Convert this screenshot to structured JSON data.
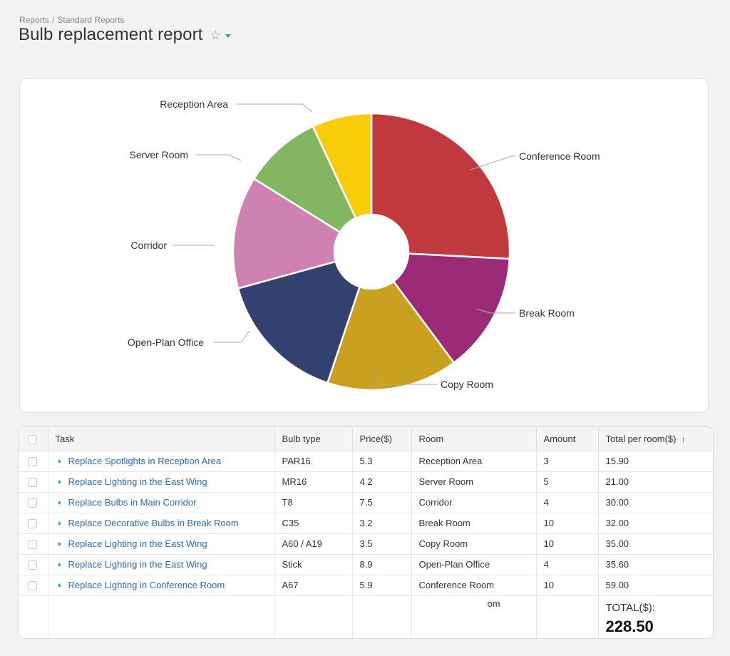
{
  "breadcrumb": {
    "root": "Reports",
    "separator": "/",
    "current": "Standard Reports"
  },
  "page": {
    "title": "Bulb replacement report"
  },
  "chart_data": {
    "type": "pie",
    "hole": true,
    "categories": [
      "Conference Room",
      "Break Room",
      "Copy Room",
      "Open-Plan Office",
      "Corridor",
      "Server Room",
      "Reception Area"
    ],
    "values": [
      59.0,
      32.0,
      35.0,
      35.6,
      30.0,
      21.0,
      15.9
    ],
    "colors": [
      "#c0393e",
      "#9b2b76",
      "#c9a01f",
      "#32416f",
      "#cf82b2",
      "#82b660",
      "#f8cc09"
    ]
  },
  "table": {
    "columns": [
      "Task",
      "Bulb type",
      "Price($)",
      "Room",
      "Amount",
      "Total per room($)"
    ],
    "rows": [
      {
        "task": "Replace Spotlights in Reception Area",
        "bulb": "PAR16",
        "price": "5.3",
        "room": "Reception Area",
        "amount": "3",
        "total": "15.90"
      },
      {
        "task": "Replace Lighting in the East Wing",
        "bulb": "MR16",
        "price": "4.2",
        "room": "Server Room",
        "amount": "5",
        "total": "21.00"
      },
      {
        "task": "Replace Bulbs in Main Corridor",
        "bulb": "T8",
        "price": "7.5",
        "room": "Corridor",
        "amount": "4",
        "total": "30.00"
      },
      {
        "task": "Replace Decorative Bulbs in Break Room",
        "bulb": "C35",
        "price": "3.2",
        "room": "Break Room",
        "amount": "10",
        "total": "32.00"
      },
      {
        "task": "Replace Lighting in the East Wing",
        "bulb": "A60 / A19",
        "price": "3.5",
        "room": "Copy Room",
        "amount": "10",
        "total": "35.00"
      },
      {
        "task": "Replace Lighting in the East Wing",
        "bulb": "Stick",
        "price": "8.9",
        "room": "Open-Plan Office",
        "amount": "4",
        "total": "35.60"
      },
      {
        "task": "Replace Lighting in Conference Room",
        "bulb": "A67",
        "price": "5.9",
        "room": "Conference Room",
        "amount": "10",
        "total": "59.00"
      }
    ],
    "footer": {
      "stray_text": "om",
      "total_label": "TOTAL($):",
      "total_value": "228.50"
    }
  }
}
